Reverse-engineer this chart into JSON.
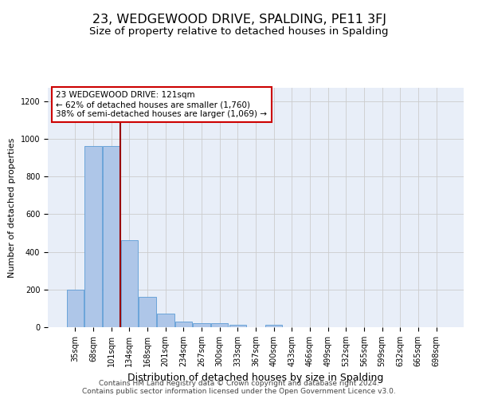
{
  "title": "23, WEDGEWOOD DRIVE, SPALDING, PE11 3FJ",
  "subtitle": "Size of property relative to detached houses in Spalding",
  "xlabel": "Distribution of detached houses by size in Spalding",
  "ylabel": "Number of detached properties",
  "categories": [
    "35sqm",
    "68sqm",
    "101sqm",
    "134sqm",
    "168sqm",
    "201sqm",
    "234sqm",
    "267sqm",
    "300sqm",
    "333sqm",
    "367sqm",
    "400sqm",
    "433sqm",
    "466sqm",
    "499sqm",
    "532sqm",
    "565sqm",
    "599sqm",
    "632sqm",
    "665sqm",
    "698sqm"
  ],
  "values": [
    200,
    960,
    960,
    460,
    160,
    70,
    28,
    22,
    20,
    12,
    0,
    12,
    0,
    0,
    0,
    0,
    0,
    0,
    0,
    0,
    0
  ],
  "bar_color": "#aec6e8",
  "bar_edge_color": "#5b9bd5",
  "grid_color": "#cccccc",
  "background_color": "#e8eef8",
  "vline_x": 2.5,
  "vline_color": "#990000",
  "annotation_text": "23 WEDGEWOOD DRIVE: 121sqm\n← 62% of detached houses are smaller (1,760)\n38% of semi-detached houses are larger (1,069) →",
  "annotation_box_color": "white",
  "annotation_box_edge": "#cc0000",
  "ylim": [
    0,
    1270
  ],
  "yticks": [
    0,
    200,
    400,
    600,
    800,
    1000,
    1200
  ],
  "footer_line1": "Contains HM Land Registry data © Crown copyright and database right 2024.",
  "footer_line2": "Contains public sector information licensed under the Open Government Licence v3.0.",
  "title_fontsize": 11.5,
  "subtitle_fontsize": 9.5,
  "xlabel_fontsize": 9,
  "ylabel_fontsize": 8,
  "tick_fontsize": 7,
  "annot_fontsize": 7.5,
  "footer_fontsize": 6.5
}
